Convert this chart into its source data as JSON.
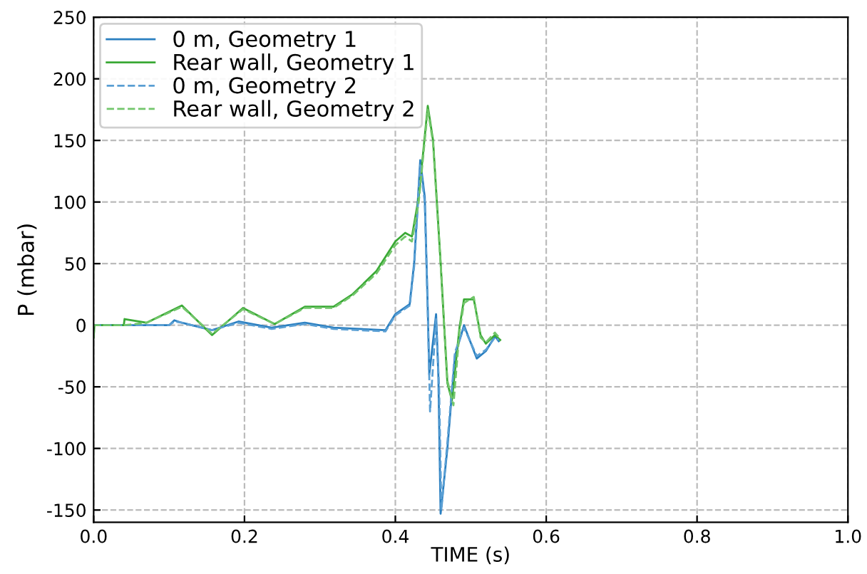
{
  "chart_data": {
    "type": "line",
    "xlabel": "TIME (s)",
    "ylabel": "P (mbar)",
    "xlim": [
      0,
      1
    ],
    "ylim": [
      -160,
      250
    ],
    "xticks": [
      {
        "value": 0,
        "label": "0.0"
      },
      0.2,
      0.4,
      0.6,
      0.8,
      {
        "value": 1,
        "label": "1.0"
      }
    ],
    "yticks": [
      -150,
      -100,
      -50,
      0,
      50,
      100,
      150,
      200,
      250
    ],
    "grid": true,
    "legend": "top left",
    "series": [
      {
        "name": "0 m, Geometry 1",
        "color": "#2a7fc0",
        "line_style": "solid",
        "x": [
          0,
          0.1,
          0.107,
          0.117,
          0.157,
          0.192,
          0.236,
          0.28,
          0.318,
          0.387,
          0.4,
          0.419,
          0.425,
          0.433,
          0.439,
          0.443,
          0.445,
          0.454,
          0.457,
          0.46,
          0.469,
          0.479,
          0.491,
          0.508,
          0.52,
          0.532,
          0.537
        ],
        "values": [
          0,
          0,
          4,
          2,
          -4,
          3,
          -2,
          2,
          -2,
          -4,
          9,
          17,
          51,
          134,
          104,
          13,
          -40,
          9,
          -40,
          -153,
          -100,
          -25,
          0,
          -27,
          -21,
          -9,
          -13
        ]
      },
      {
        "name": "Rear wall, Geometry 1",
        "color": "#3aa935",
        "line_style": "solid",
        "x": [
          0,
          0.001,
          0.04,
          0.041,
          0.07,
          0.117,
          0.157,
          0.198,
          0.24,
          0.28,
          0.318,
          0.343,
          0.375,
          0.4,
          0.413,
          0.422,
          0.431,
          0.443,
          0.45,
          0.46,
          0.469,
          0.475,
          0.485,
          0.491,
          0.504,
          0.513,
          0.52,
          0.532,
          0.539
        ],
        "values": [
          -10,
          0,
          0,
          5,
          2,
          16,
          -8,
          14,
          1,
          15,
          15,
          25,
          44,
          68,
          75,
          72,
          104,
          178,
          150,
          51,
          -47,
          -61,
          -2,
          21,
          21,
          -8,
          -15,
          -8,
          -12
        ]
      },
      {
        "name": "0 m, Geometry 2",
        "color": "#5a9fd4",
        "line_style": "dashed",
        "x": [
          0,
          0.1,
          0.107,
          0.117,
          0.157,
          0.192,
          0.236,
          0.28,
          0.318,
          0.387,
          0.4,
          0.419,
          0.425,
          0.433,
          0.439,
          0.443,
          0.446,
          0.454,
          0.458,
          0.461,
          0.469,
          0.479,
          0.491,
          0.508,
          0.52,
          0.532,
          0.537
        ],
        "values": [
          0,
          0,
          3,
          2,
          -4,
          2,
          -3,
          1,
          -3,
          -5,
          8,
          16,
          48,
          130,
          100,
          10,
          -70,
          5,
          -50,
          -150,
          -95,
          -22,
          -2,
          -25,
          -20,
          -10,
          -12
        ]
      },
      {
        "name": "Rear wall, Geometry 2",
        "color": "#72c66b",
        "line_style": "dashed",
        "x": [
          0,
          0.001,
          0.04,
          0.07,
          0.117,
          0.157,
          0.198,
          0.24,
          0.28,
          0.318,
          0.343,
          0.375,
          0.4,
          0.413,
          0.422,
          0.431,
          0.443,
          0.45,
          0.46,
          0.469,
          0.477,
          0.485,
          0.491,
          0.504,
          0.513,
          0.52,
          0.532,
          0.539
        ],
        "values": [
          -10,
          0,
          0,
          2,
          15,
          -7,
          13,
          1,
          14,
          14,
          24,
          42,
          65,
          72,
          68,
          100,
          175,
          148,
          50,
          -45,
          -65,
          -5,
          18,
          23,
          -10,
          -14,
          -6,
          -11
        ]
      }
    ]
  }
}
